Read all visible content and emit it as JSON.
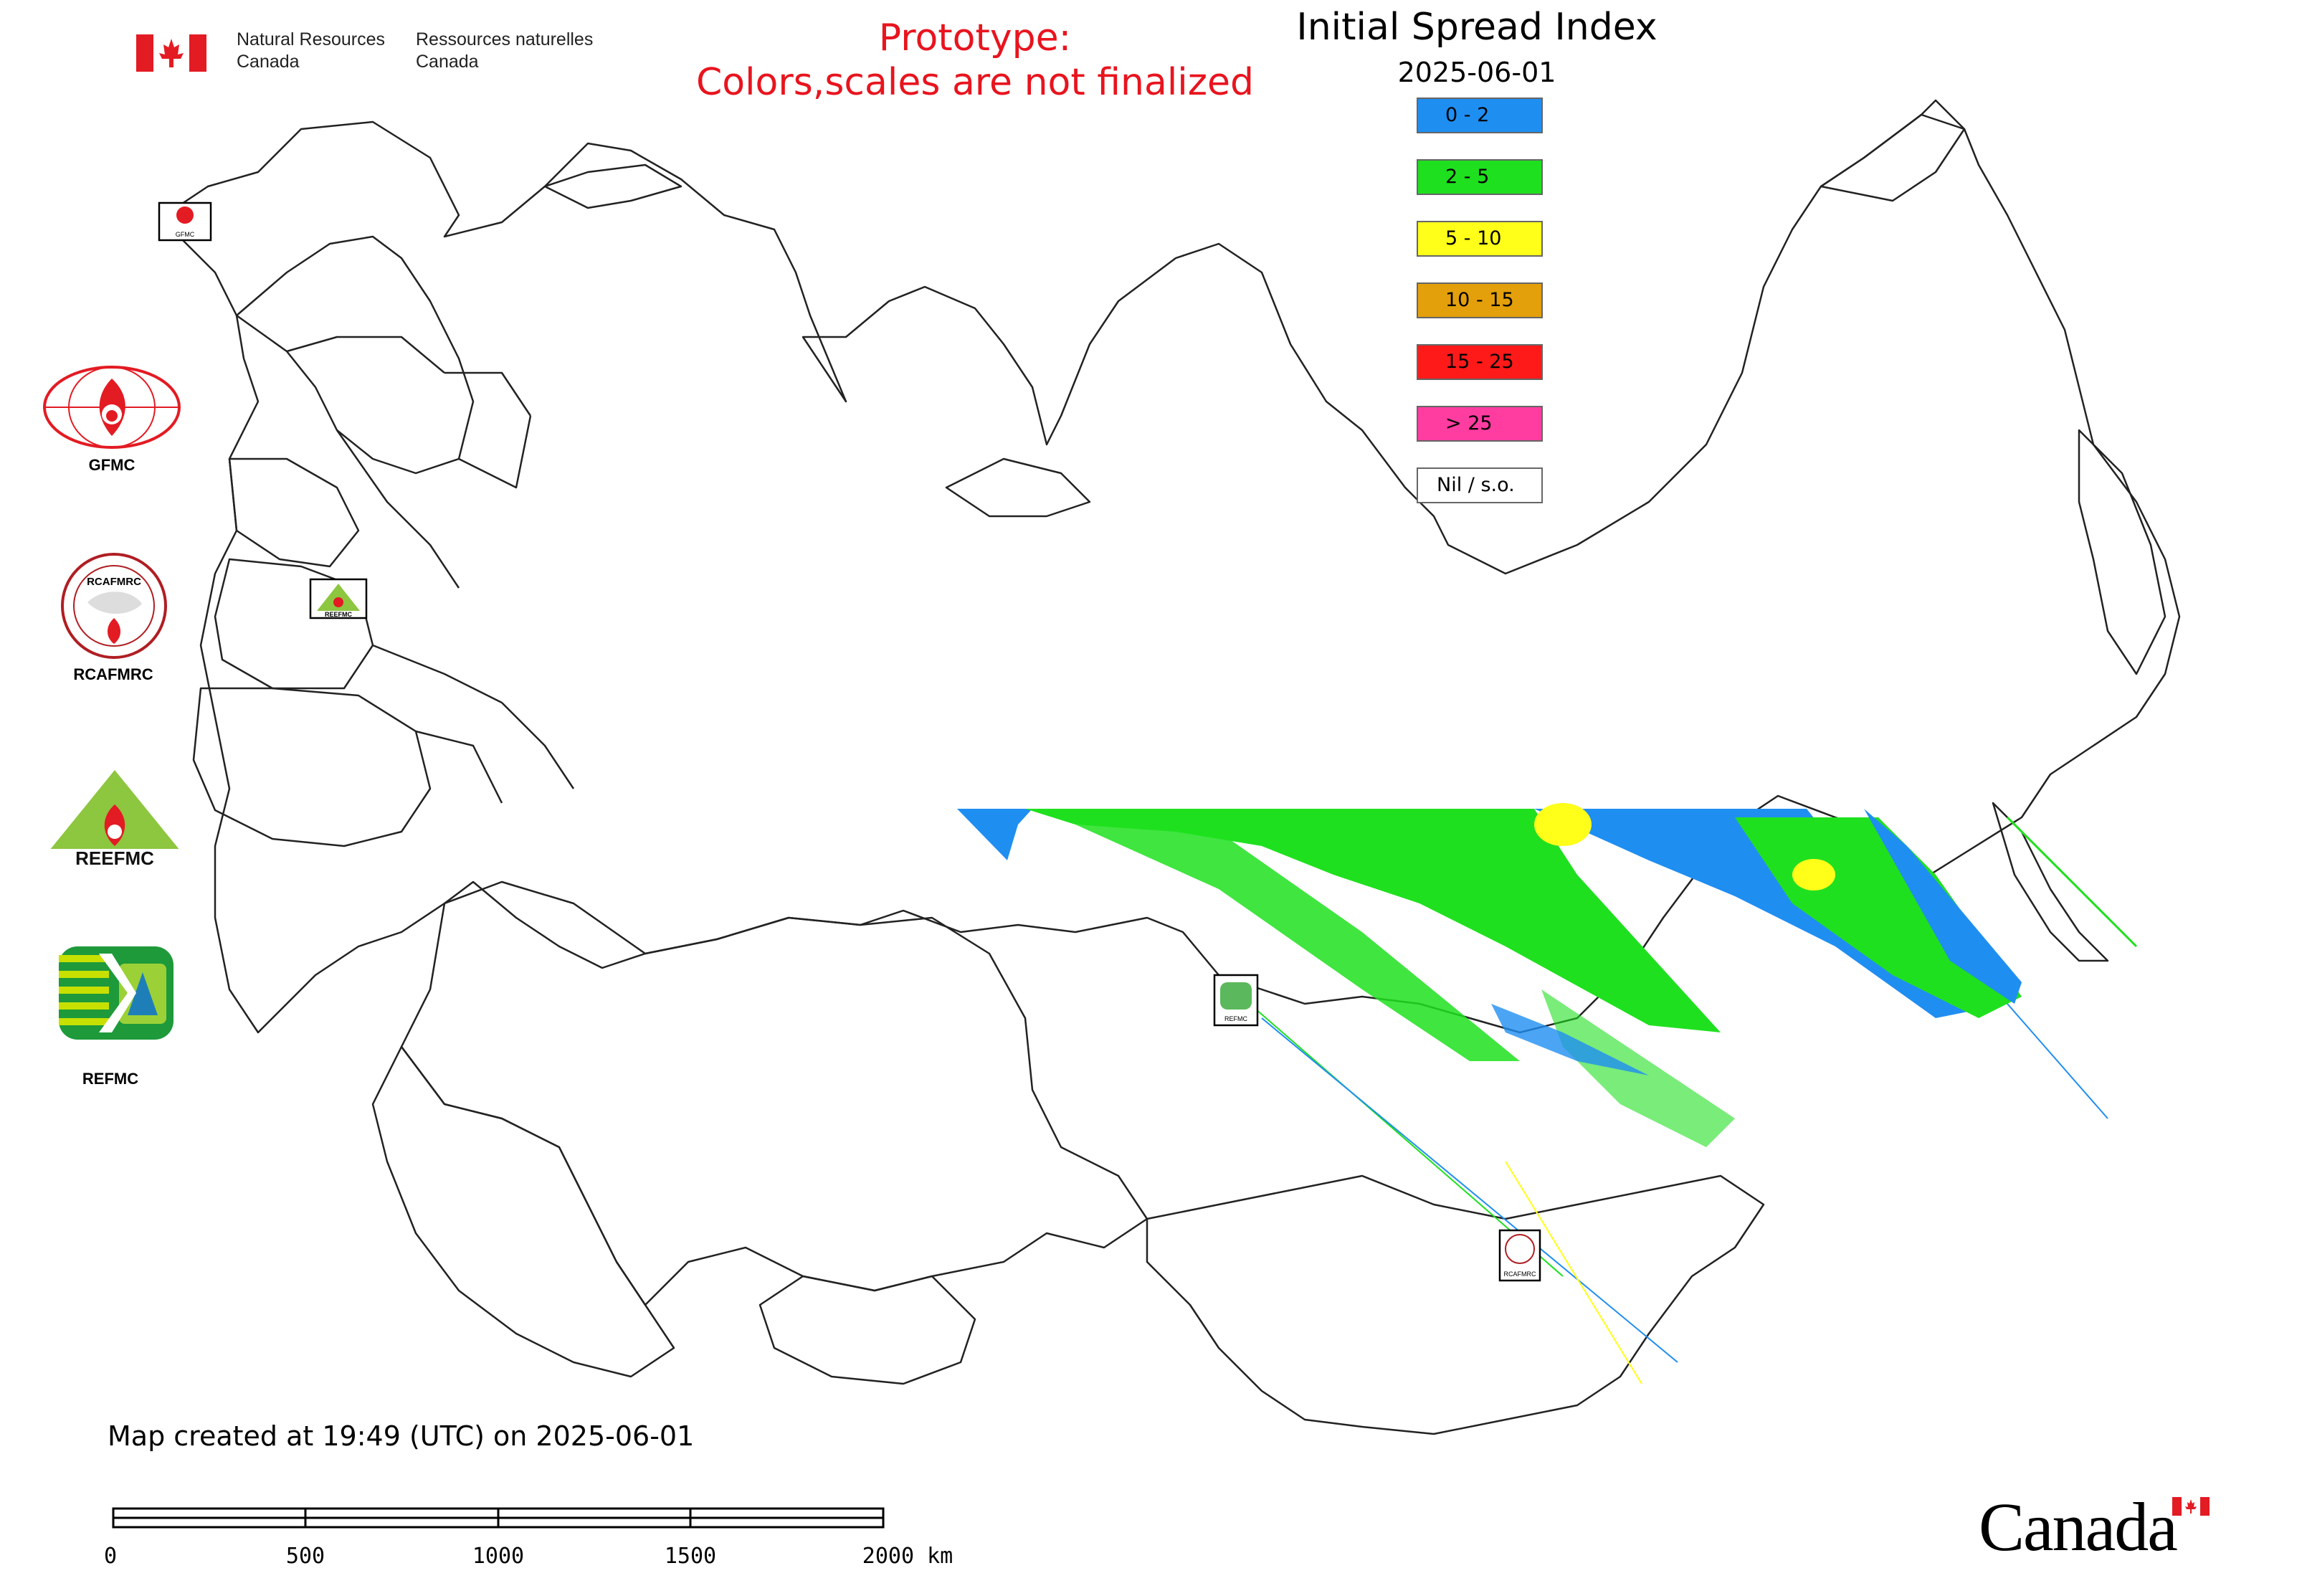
{
  "header": {
    "agency_en_line1": "Natural Resources",
    "agency_en_line2": "Canada",
    "agency_fr_line1": "Ressources naturelles",
    "agency_fr_line2": "Canada",
    "prototype_line1": "Prototype:",
    "prototype_line2": "Colors,scales are not finalized",
    "prototype_color": "#e8141e"
  },
  "map": {
    "title": "Initial Spread Index",
    "date": "2025-06-01"
  },
  "legend": {
    "items": [
      {
        "label": "0 - 2",
        "color": "#1f8ef1"
      },
      {
        "label": "2 - 5",
        "color": "#1fe01f"
      },
      {
        "label": "5 - 10",
        "color": "#ffff1a"
      },
      {
        "label": "10 - 15",
        "color": "#e3a00b"
      },
      {
        "label": "15 - 25",
        "color": "#ff1a1a"
      },
      {
        "label": "> 25",
        "color": "#ff3ca0"
      },
      {
        "label": "Nil / s.o.",
        "color": "#ffffff"
      }
    ]
  },
  "partners": [
    {
      "name": "GFMC"
    },
    {
      "name": "RCAFMRC"
    },
    {
      "name": "REEFMC"
    },
    {
      "name": "REFMC"
    }
  ],
  "map_markers": {
    "gfmc_small": "GFMC",
    "reefmc_small": "REEFMC",
    "refmc_small": "REFMC",
    "rcafmrc_small": "RCAFMRC",
    "rcafmrc_logo_text": "RCAFMRC"
  },
  "footer": {
    "created": "Map created at 19:49 (UTC) on 2025-06-01",
    "scale_ticks": [
      "0",
      "500",
      "1000",
      "1500",
      "2000 km"
    ],
    "wordmark": "Canada"
  }
}
